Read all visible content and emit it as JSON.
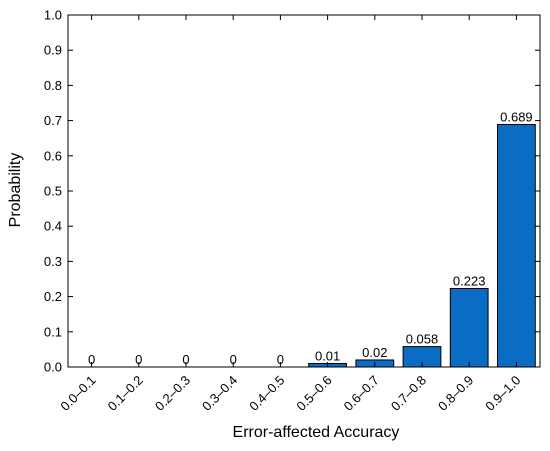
{
  "chart_data": {
    "type": "bar",
    "title": "",
    "xlabel": "Error-affected Accuracy",
    "ylabel": "Probability",
    "categories": [
      "0.0–0.1",
      "0.1–0.2",
      "0.2–0.3",
      "0.3–0.4",
      "0.4–0.5",
      "0.5–0.6",
      "0.6–0.7",
      "0.7–0.8",
      "0.8–0.9",
      "0.9–1.0"
    ],
    "values": [
      0,
      0,
      0,
      0,
      0,
      0.01,
      0.02,
      0.058,
      0.223,
      0.689
    ],
    "data_labels": [
      "0",
      "0",
      "0",
      "0",
      "0",
      "0.01",
      "0.02",
      "0.058",
      "0.223",
      "0.689"
    ],
    "ylim": [
      0,
      1.0
    ],
    "yticks": [
      "0.0",
      "0.1",
      "0.2",
      "0.3",
      "0.4",
      "0.5",
      "0.6",
      "0.7",
      "0.8",
      "0.9",
      "1.0"
    ],
    "grid": false,
    "legend": "none",
    "bar_color": "#0a6cc2",
    "bar_edge_color": "#000000"
  }
}
